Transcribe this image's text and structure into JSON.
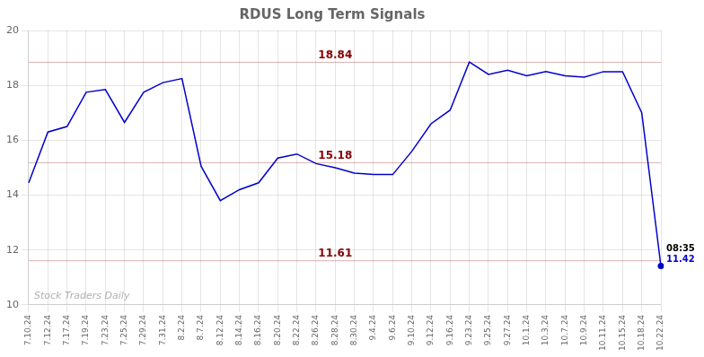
{
  "chart_data": {
    "type": "line",
    "title": "RDUS Long Term Signals",
    "categories": [
      "7.10.24",
      "7.12.24",
      "7.17.24",
      "7.19.24",
      "7.23.24",
      "7.25.24",
      "7.29.24",
      "7.31.24",
      "8.2.24",
      "8.7.24",
      "8.12.24",
      "8.14.24",
      "8.16.24",
      "8.20.24",
      "8.22.24",
      "8.26.24",
      "8.28.24",
      "8.30.24",
      "9.4.24",
      "9.6.24",
      "9.10.24",
      "9.12.24",
      "9.16.24",
      "9.23.24",
      "9.25.24",
      "9.27.24",
      "10.1.24",
      "10.3.24",
      "10.7.24",
      "10.9.24",
      "10.11.24",
      "10.15.24",
      "10.18.24",
      "10.22.24"
    ],
    "values": [
      14.45,
      16.3,
      16.5,
      17.75,
      17.85,
      16.65,
      17.75,
      18.1,
      18.25,
      15.05,
      13.8,
      14.2,
      14.45,
      15.35,
      15.5,
      15.15,
      15.0,
      14.8,
      14.75,
      14.75,
      15.6,
      16.6,
      17.1,
      18.85,
      18.4,
      18.55,
      18.35,
      18.5,
      18.35,
      18.3,
      18.5,
      18.5,
      17.0,
      11.42
    ],
    "color": "#0000cc",
    "ylim": [
      10,
      20
    ],
    "yticks": [
      10,
      12,
      14,
      16,
      18,
      20
    ],
    "grid": true,
    "hlines": [
      {
        "value": 18.84,
        "label": "18.84",
        "color": "#880000"
      },
      {
        "value": 15.18,
        "label": "15.18",
        "color": "#880000"
      },
      {
        "value": 11.61,
        "label": "11.61",
        "color": "#880000"
      }
    ],
    "annotations": [
      {
        "text": "08:35",
        "category": "10.22.24",
        "color": "#000000"
      },
      {
        "text": "11.42",
        "category": "10.22.24",
        "color": "#0000cc"
      },
      {
        "text": "Stock Traders Daily",
        "color": "#b0b0b0"
      }
    ]
  }
}
